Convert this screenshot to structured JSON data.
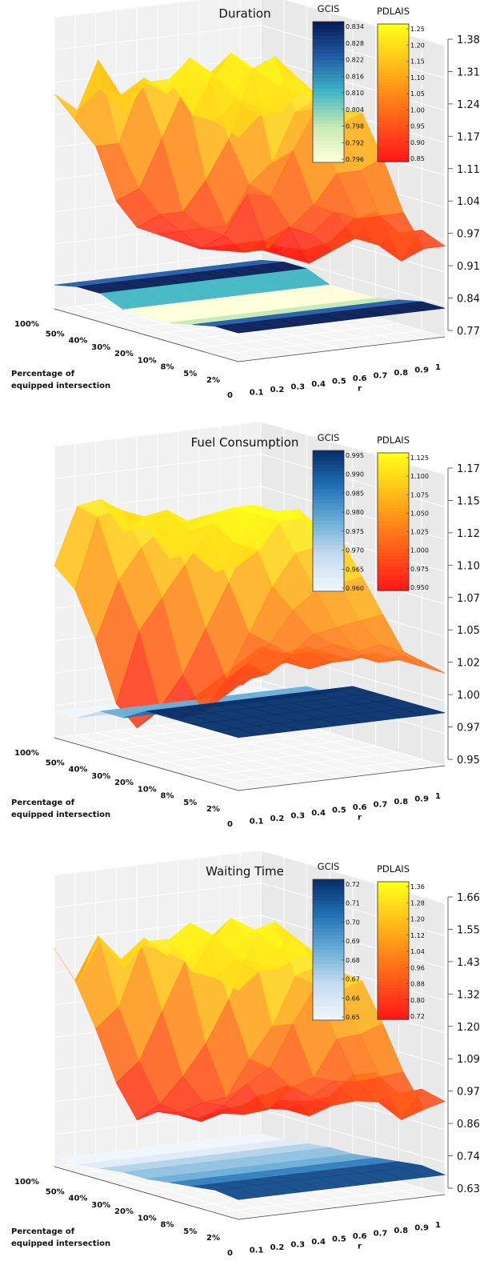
{
  "chart_data": [
    {
      "type": "surface3d",
      "title": "Duration",
      "xlabel": "r",
      "ylabel": [
        "Percentage of",
        "equipped intersection"
      ],
      "x_ticks": [
        "0",
        "0.1",
        "0.2",
        "0.3",
        "0.4",
        "0.5",
        "0.6",
        "0.7",
        "0.8",
        "0.9",
        "1"
      ],
      "y_ticks": [
        "100%",
        "50%",
        "40%",
        "30%",
        "20%",
        "10%",
        "8%",
        "5%",
        "2%"
      ],
      "z_ticks": [
        "0.77",
        "0.84",
        "0.91",
        "0.97",
        "1.04",
        "1.11",
        "1.17",
        "1.24",
        "1.31",
        "1.38"
      ],
      "zlim": [
        0.77,
        1.38
      ],
      "colorbars": [
        {
          "name": "GCIS",
          "colormap": "blues",
          "ticks": [
            "0.834",
            "0.828",
            "0.822",
            "0.816",
            "0.810",
            "0.804",
            "0.798",
            "0.792",
            "0.796"
          ]
        },
        {
          "name": "PDLAIS",
          "colormap": "autumn",
          "ticks": [
            "1.25",
            "1.20",
            "1.15",
            "1.10",
            "1.05",
            "1.00",
            "0.95",
            "0.90",
            "0.85"
          ]
        }
      ],
      "series": [
        {
          "name": "PDLAIS",
          "z": [
            [
              1.22,
              1.16,
              1.1,
              0.98,
              0.92,
              0.9,
              0.88,
              0.86,
              0.86,
              0.86,
              0.86
            ],
            [
              1.2,
              1.3,
              1.12,
              1.02,
              0.96,
              0.92,
              0.88,
              0.87,
              0.88,
              0.86,
              0.86
            ],
            [
              1.26,
              1.24,
              1.26,
              1.14,
              0.98,
              0.94,
              0.92,
              0.88,
              0.9,
              0.86,
              0.87
            ],
            [
              1.22,
              1.29,
              1.26,
              1.26,
              1.06,
              0.96,
              1.02,
              0.9,
              0.94,
              0.86,
              0.9
            ],
            [
              1.3,
              1.27,
              1.31,
              1.3,
              1.16,
              1.06,
              1.03,
              0.96,
              0.94,
              0.9,
              0.96
            ],
            [
              1.32,
              1.36,
              1.3,
              1.36,
              1.32,
              1.12,
              1.14,
              1.02,
              1.0,
              0.94,
              0.99
            ],
            [
              1.26,
              1.34,
              1.3,
              1.34,
              1.36,
              1.24,
              1.24,
              1.1,
              1.0,
              0.94,
              0.96
            ],
            [
              1.26,
              1.3,
              1.28,
              1.32,
              1.33,
              1.28,
              1.22,
              1.12,
              1.02,
              0.92,
              0.98
            ],
            [
              1.24,
              1.28,
              1.28,
              1.32,
              1.3,
              1.27,
              1.26,
              1.16,
              1.04,
              0.96,
              0.96
            ]
          ]
        },
        {
          "name": "GCIS",
          "z": [
            [
              0.82,
              0.82,
              0.82,
              0.82,
              0.82,
              0.82,
              0.82,
              0.82,
              0.82,
              0.82,
              0.82
            ],
            [
              0.83,
              0.83,
              0.83,
              0.83,
              0.83,
              0.83,
              0.83,
              0.83,
              0.83,
              0.83,
              0.83
            ],
            [
              0.83,
              0.83,
              0.83,
              0.83,
              0.83,
              0.83,
              0.83,
              0.83,
              0.83,
              0.83,
              0.83
            ],
            [
              0.81,
              0.81,
              0.81,
              0.81,
              0.81,
              0.81,
              0.81,
              0.81,
              0.81,
              0.81,
              0.81
            ],
            [
              0.81,
              0.81,
              0.81,
              0.81,
              0.81,
              0.81,
              0.81,
              0.81,
              0.81,
              0.81,
              0.81
            ],
            [
              0.81,
              0.81,
              0.81,
              0.81,
              0.81,
              0.81,
              0.81,
              0.81,
              0.81,
              0.81,
              0.81
            ],
            [
              0.82,
              0.82,
              0.82,
              0.82,
              0.82,
              0.82,
              0.82,
              0.82,
              0.82,
              0.82,
              0.82
            ],
            [
              0.83,
              0.83,
              0.83,
              0.83,
              0.83,
              0.83,
              0.83,
              0.83,
              0.83,
              0.83,
              0.83
            ],
            [
              0.83,
              0.83,
              0.83,
              0.83,
              0.83,
              0.83,
              0.83,
              0.83,
              0.83,
              0.83,
              0.83
            ]
          ]
        }
      ]
    },
    {
      "type": "surface3d",
      "title": "Fuel Consumption",
      "xlabel": "r",
      "ylabel": [
        "Percentage of",
        "equipped intersection"
      ],
      "x_ticks": [
        "0",
        "0.1",
        "0.2",
        "0.3",
        "0.4",
        "0.5",
        "0.6",
        "0.7",
        "0.8",
        "0.9",
        "1"
      ],
      "y_ticks": [
        "100%",
        "50%",
        "40%",
        "30%",
        "20%",
        "10%",
        "8%",
        "5%",
        "2%"
      ],
      "z_ticks": [
        "0.95",
        "0.97",
        "1.00",
        "1.02",
        "1.05",
        "1.07",
        "1.10",
        "1.12",
        "1.15",
        "1.17"
      ],
      "zlim": [
        0.95,
        1.17
      ],
      "colorbars": [
        {
          "name": "GCIS",
          "colormap": "blues",
          "ticks": [
            "0.995",
            "0.990",
            "0.985",
            "0.980",
            "0.975",
            "0.970",
            "0.965",
            "0.960"
          ]
        },
        {
          "name": "PDLAIS",
          "colormap": "autumn",
          "ticks": [
            "1.125",
            "1.100",
            "1.075",
            "1.050",
            "1.025",
            "1.000",
            "0.975",
            "0.950"
          ]
        }
      ],
      "series": [
        {
          "name": "PDLAIS",
          "z": [
            [
              1.08,
              1.06,
              1.02,
              0.97,
              0.95,
              0.96,
              0.96,
              0.97,
              0.98,
              0.99,
              1.0
            ],
            [
              1.13,
              1.12,
              1.07,
              1.03,
              0.97,
              0.96,
              0.97,
              0.98,
              0.98,
              0.99,
              1.0
            ],
            [
              1.14,
              1.13,
              1.1,
              1.06,
              1.0,
              0.97,
              0.98,
              0.99,
              1.0,
              1.0,
              1.01
            ],
            [
              1.12,
              1.13,
              1.12,
              1.09,
              1.04,
              1.0,
              1.01,
              1.0,
              1.01,
              1.0,
              1.01
            ],
            [
              1.13,
              1.14,
              1.13,
              1.12,
              1.08,
              1.04,
              1.03,
              1.02,
              1.02,
              1.01,
              1.01
            ],
            [
              1.11,
              1.13,
              1.14,
              1.14,
              1.12,
              1.08,
              1.06,
              1.04,
              1.03,
              1.02,
              1.02
            ],
            [
              1.12,
              1.14,
              1.15,
              1.15,
              1.14,
              1.11,
              1.08,
              1.05,
              1.03,
              1.02,
              1.02
            ],
            [
              1.11,
              1.13,
              1.15,
              1.15,
              1.15,
              1.12,
              1.09,
              1.06,
              1.04,
              1.03,
              1.02
            ],
            [
              1.12,
              1.13,
              1.15,
              1.15,
              1.14,
              1.13,
              1.1,
              1.07,
              1.04,
              1.03,
              1.02
            ]
          ]
        },
        {
          "name": "GCIS",
          "z": [
            [
              0.97,
              0.97,
              0.97,
              0.97,
              0.97,
              0.97,
              0.97,
              0.97,
              0.97,
              0.97,
              0.97
            ],
            [
              0.97,
              0.97,
              0.97,
              0.97,
              0.97,
              0.97,
              0.97,
              0.97,
              0.97,
              0.97,
              0.97
            ],
            [
              0.98,
              0.98,
              0.98,
              0.98,
              0.98,
              0.98,
              0.98,
              0.98,
              0.98,
              0.98,
              0.98
            ],
            [
              0.98,
              0.98,
              0.98,
              0.98,
              0.98,
              0.98,
              0.98,
              0.98,
              0.98,
              0.98,
              0.98
            ],
            [
              0.99,
              0.99,
              0.99,
              0.99,
              0.99,
              0.99,
              0.99,
              0.99,
              0.99,
              0.99,
              0.99
            ],
            [
              0.99,
              0.99,
              0.99,
              0.99,
              0.99,
              0.99,
              0.99,
              0.99,
              0.99,
              0.99,
              0.99
            ],
            [
              0.99,
              0.99,
              0.99,
              0.99,
              0.99,
              0.99,
              0.99,
              0.99,
              0.99,
              0.99,
              0.99
            ],
            [
              0.99,
              0.99,
              0.99,
              0.99,
              0.99,
              0.99,
              0.99,
              0.99,
              0.99,
              0.99,
              0.99
            ],
            [
              0.99,
              0.99,
              0.99,
              0.99,
              0.99,
              0.99,
              0.99,
              0.99,
              0.99,
              0.99,
              0.99
            ]
          ]
        }
      ]
    },
    {
      "type": "surface3d",
      "title": "Waiting Time",
      "xlabel": "r",
      "ylabel": [
        "Percentage of",
        "equipped intersection"
      ],
      "x_ticks": [
        "0",
        "0.1",
        "0.2",
        "0.3",
        "0.4",
        "0.5",
        "0.6",
        "0.7",
        "0.8",
        "0.9",
        "1"
      ],
      "y_ticks": [
        "100%",
        "50%",
        "40%",
        "30%",
        "20%",
        "10%",
        "8%",
        "5%",
        "2%"
      ],
      "z_ticks": [
        "0.63",
        "0.74",
        "0.86",
        "0.97",
        "1.09",
        "1.20",
        "1.32",
        "1.43",
        "1.55",
        "1.66"
      ],
      "zlim": [
        0.63,
        1.66
      ],
      "colorbars": [
        {
          "name": "GCIS",
          "colormap": "blues",
          "ticks": [
            "0.72",
            "0.71",
            "0.70",
            "0.69",
            "0.68",
            "0.67",
            "0.66",
            "0.65"
          ]
        },
        {
          "name": "PDLAIS",
          "colormap": "autumn",
          "ticks": [
            "1.36",
            "1.28",
            "1.20",
            "1.12",
            "1.04",
            "0.96",
            "0.88",
            "0.80",
            "0.72"
          ]
        }
      ],
      "series": [
        {
          "name": "PDLAIS",
          "z": [
            [
              1.4,
              1.28,
              1.1,
              0.9,
              0.76,
              0.78,
              0.76,
              0.74,
              0.76,
              0.76,
              0.8
            ],
            [
              1.3,
              1.46,
              1.2,
              1.0,
              0.84,
              0.8,
              0.76,
              0.78,
              0.8,
              0.78,
              0.8
            ],
            [
              1.48,
              1.4,
              1.44,
              1.2,
              0.96,
              0.86,
              0.84,
              0.8,
              0.86,
              0.8,
              0.82
            ],
            [
              1.4,
              1.5,
              1.44,
              1.4,
              1.1,
              0.9,
              0.94,
              0.84,
              0.92,
              0.8,
              0.86
            ],
            [
              1.52,
              1.46,
              1.54,
              1.5,
              1.28,
              1.06,
              1.02,
              0.94,
              0.9,
              0.86,
              0.96
            ],
            [
              1.55,
              1.6,
              1.52,
              1.6,
              1.5,
              1.2,
              1.2,
              1.0,
              0.98,
              0.9,
              0.99
            ],
            [
              1.46,
              1.58,
              1.52,
              1.58,
              1.6,
              1.4,
              1.36,
              1.16,
              1.0,
              0.92,
              0.94
            ],
            [
              1.46,
              1.52,
              1.5,
              1.54,
              1.56,
              1.46,
              1.36,
              1.2,
              1.04,
              0.88,
              0.98
            ],
            [
              1.44,
              1.5,
              1.5,
              1.54,
              1.52,
              1.46,
              1.42,
              1.26,
              1.08,
              0.94,
              0.96
            ]
          ]
        },
        {
          "name": "GCIS",
          "z": [
            [
              0.66,
              0.66,
              0.66,
              0.66,
              0.66,
              0.66,
              0.66,
              0.66,
              0.66,
              0.66,
              0.66
            ],
            [
              0.66,
              0.66,
              0.66,
              0.66,
              0.66,
              0.66,
              0.66,
              0.66,
              0.66,
              0.66,
              0.66
            ],
            [
              0.67,
              0.67,
              0.67,
              0.67,
              0.67,
              0.67,
              0.67,
              0.67,
              0.67,
              0.67,
              0.67
            ],
            [
              0.68,
              0.68,
              0.68,
              0.68,
              0.68,
              0.68,
              0.68,
              0.68,
              0.68,
              0.68,
              0.68
            ],
            [
              0.68,
              0.68,
              0.68,
              0.68,
              0.68,
              0.68,
              0.68,
              0.68,
              0.68,
              0.68,
              0.68
            ],
            [
              0.69,
              0.69,
              0.69,
              0.69,
              0.69,
              0.69,
              0.69,
              0.69,
              0.69,
              0.69,
              0.69
            ],
            [
              0.7,
              0.7,
              0.7,
              0.7,
              0.7,
              0.7,
              0.7,
              0.7,
              0.7,
              0.7,
              0.7
            ],
            [
              0.71,
              0.71,
              0.71,
              0.71,
              0.71,
              0.71,
              0.71,
              0.71,
              0.71,
              0.71,
              0.71
            ],
            [
              0.7,
              0.7,
              0.7,
              0.7,
              0.7,
              0.7,
              0.7,
              0.7,
              0.7,
              0.7,
              0.7
            ]
          ]
        }
      ]
    }
  ]
}
